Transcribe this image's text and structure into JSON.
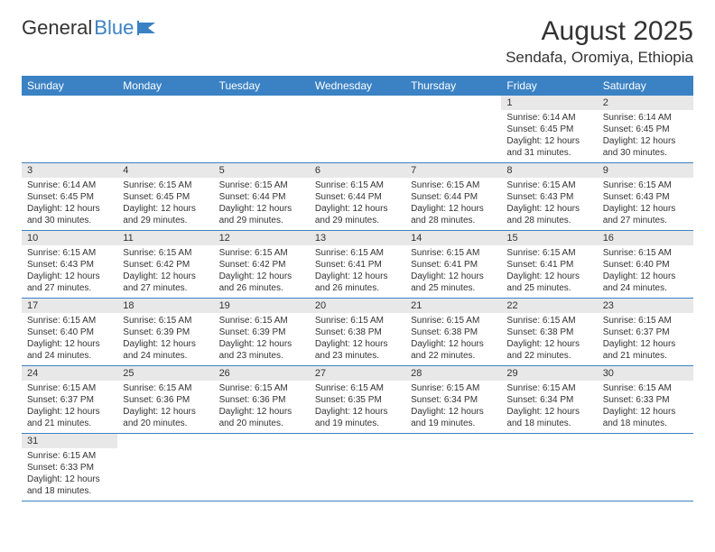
{
  "logo": {
    "part1": "General",
    "part2": "Blue"
  },
  "title": "August 2025",
  "location": "Sendafa, Oromiya, Ethiopia",
  "colors": {
    "header_bg": "#3b82c4",
    "header_text": "#ffffff",
    "daynum_bg": "#e8e8e8",
    "border": "#3b82c4",
    "text": "#333333"
  },
  "day_headers": [
    "Sunday",
    "Monday",
    "Tuesday",
    "Wednesday",
    "Thursday",
    "Friday",
    "Saturday"
  ],
  "weeks": [
    [
      null,
      null,
      null,
      null,
      null,
      {
        "n": "1",
        "sr": "Sunrise: 6:14 AM",
        "ss": "Sunset: 6:45 PM",
        "d1": "Daylight: 12 hours",
        "d2": "and 31 minutes."
      },
      {
        "n": "2",
        "sr": "Sunrise: 6:14 AM",
        "ss": "Sunset: 6:45 PM",
        "d1": "Daylight: 12 hours",
        "d2": "and 30 minutes."
      }
    ],
    [
      {
        "n": "3",
        "sr": "Sunrise: 6:14 AM",
        "ss": "Sunset: 6:45 PM",
        "d1": "Daylight: 12 hours",
        "d2": "and 30 minutes."
      },
      {
        "n": "4",
        "sr": "Sunrise: 6:15 AM",
        "ss": "Sunset: 6:45 PM",
        "d1": "Daylight: 12 hours",
        "d2": "and 29 minutes."
      },
      {
        "n": "5",
        "sr": "Sunrise: 6:15 AM",
        "ss": "Sunset: 6:44 PM",
        "d1": "Daylight: 12 hours",
        "d2": "and 29 minutes."
      },
      {
        "n": "6",
        "sr": "Sunrise: 6:15 AM",
        "ss": "Sunset: 6:44 PM",
        "d1": "Daylight: 12 hours",
        "d2": "and 29 minutes."
      },
      {
        "n": "7",
        "sr": "Sunrise: 6:15 AM",
        "ss": "Sunset: 6:44 PM",
        "d1": "Daylight: 12 hours",
        "d2": "and 28 minutes."
      },
      {
        "n": "8",
        "sr": "Sunrise: 6:15 AM",
        "ss": "Sunset: 6:43 PM",
        "d1": "Daylight: 12 hours",
        "d2": "and 28 minutes."
      },
      {
        "n": "9",
        "sr": "Sunrise: 6:15 AM",
        "ss": "Sunset: 6:43 PM",
        "d1": "Daylight: 12 hours",
        "d2": "and 27 minutes."
      }
    ],
    [
      {
        "n": "10",
        "sr": "Sunrise: 6:15 AM",
        "ss": "Sunset: 6:43 PM",
        "d1": "Daylight: 12 hours",
        "d2": "and 27 minutes."
      },
      {
        "n": "11",
        "sr": "Sunrise: 6:15 AM",
        "ss": "Sunset: 6:42 PM",
        "d1": "Daylight: 12 hours",
        "d2": "and 27 minutes."
      },
      {
        "n": "12",
        "sr": "Sunrise: 6:15 AM",
        "ss": "Sunset: 6:42 PM",
        "d1": "Daylight: 12 hours",
        "d2": "and 26 minutes."
      },
      {
        "n": "13",
        "sr": "Sunrise: 6:15 AM",
        "ss": "Sunset: 6:41 PM",
        "d1": "Daylight: 12 hours",
        "d2": "and 26 minutes."
      },
      {
        "n": "14",
        "sr": "Sunrise: 6:15 AM",
        "ss": "Sunset: 6:41 PM",
        "d1": "Daylight: 12 hours",
        "d2": "and 25 minutes."
      },
      {
        "n": "15",
        "sr": "Sunrise: 6:15 AM",
        "ss": "Sunset: 6:41 PM",
        "d1": "Daylight: 12 hours",
        "d2": "and 25 minutes."
      },
      {
        "n": "16",
        "sr": "Sunrise: 6:15 AM",
        "ss": "Sunset: 6:40 PM",
        "d1": "Daylight: 12 hours",
        "d2": "and 24 minutes."
      }
    ],
    [
      {
        "n": "17",
        "sr": "Sunrise: 6:15 AM",
        "ss": "Sunset: 6:40 PM",
        "d1": "Daylight: 12 hours",
        "d2": "and 24 minutes."
      },
      {
        "n": "18",
        "sr": "Sunrise: 6:15 AM",
        "ss": "Sunset: 6:39 PM",
        "d1": "Daylight: 12 hours",
        "d2": "and 24 minutes."
      },
      {
        "n": "19",
        "sr": "Sunrise: 6:15 AM",
        "ss": "Sunset: 6:39 PM",
        "d1": "Daylight: 12 hours",
        "d2": "and 23 minutes."
      },
      {
        "n": "20",
        "sr": "Sunrise: 6:15 AM",
        "ss": "Sunset: 6:38 PM",
        "d1": "Daylight: 12 hours",
        "d2": "and 23 minutes."
      },
      {
        "n": "21",
        "sr": "Sunrise: 6:15 AM",
        "ss": "Sunset: 6:38 PM",
        "d1": "Daylight: 12 hours",
        "d2": "and 22 minutes."
      },
      {
        "n": "22",
        "sr": "Sunrise: 6:15 AM",
        "ss": "Sunset: 6:38 PM",
        "d1": "Daylight: 12 hours",
        "d2": "and 22 minutes."
      },
      {
        "n": "23",
        "sr": "Sunrise: 6:15 AM",
        "ss": "Sunset: 6:37 PM",
        "d1": "Daylight: 12 hours",
        "d2": "and 21 minutes."
      }
    ],
    [
      {
        "n": "24",
        "sr": "Sunrise: 6:15 AM",
        "ss": "Sunset: 6:37 PM",
        "d1": "Daylight: 12 hours",
        "d2": "and 21 minutes."
      },
      {
        "n": "25",
        "sr": "Sunrise: 6:15 AM",
        "ss": "Sunset: 6:36 PM",
        "d1": "Daylight: 12 hours",
        "d2": "and 20 minutes."
      },
      {
        "n": "26",
        "sr": "Sunrise: 6:15 AM",
        "ss": "Sunset: 6:36 PM",
        "d1": "Daylight: 12 hours",
        "d2": "and 20 minutes."
      },
      {
        "n": "27",
        "sr": "Sunrise: 6:15 AM",
        "ss": "Sunset: 6:35 PM",
        "d1": "Daylight: 12 hours",
        "d2": "and 19 minutes."
      },
      {
        "n": "28",
        "sr": "Sunrise: 6:15 AM",
        "ss": "Sunset: 6:34 PM",
        "d1": "Daylight: 12 hours",
        "d2": "and 19 minutes."
      },
      {
        "n": "29",
        "sr": "Sunrise: 6:15 AM",
        "ss": "Sunset: 6:34 PM",
        "d1": "Daylight: 12 hours",
        "d2": "and 18 minutes."
      },
      {
        "n": "30",
        "sr": "Sunrise: 6:15 AM",
        "ss": "Sunset: 6:33 PM",
        "d1": "Daylight: 12 hours",
        "d2": "and 18 minutes."
      }
    ],
    [
      {
        "n": "31",
        "sr": "Sunrise: 6:15 AM",
        "ss": "Sunset: 6:33 PM",
        "d1": "Daylight: 12 hours",
        "d2": "and 18 minutes."
      },
      null,
      null,
      null,
      null,
      null,
      null
    ]
  ]
}
